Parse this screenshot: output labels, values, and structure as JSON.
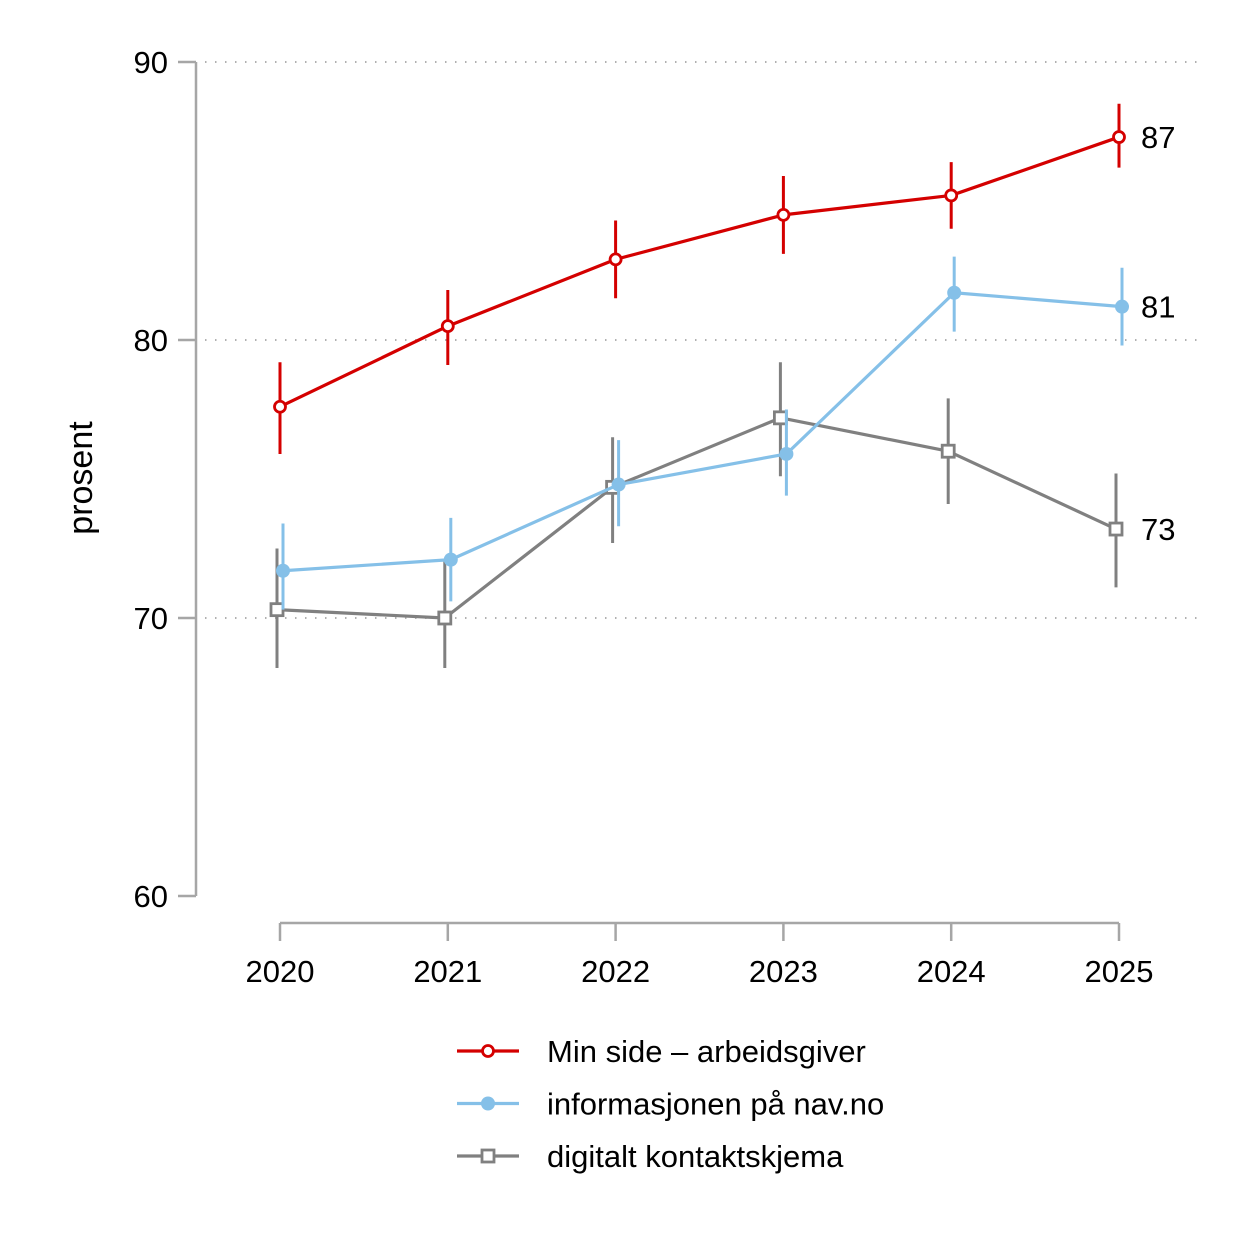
{
  "chart_data": {
    "type": "line",
    "title": "",
    "xlabel": "",
    "ylabel": "prosent",
    "x": [
      "2020",
      "2021",
      "2022",
      "2023",
      "2024",
      "2025"
    ],
    "ylim": [
      60,
      90
    ],
    "yticks": [
      "60",
      "70",
      "80",
      "90"
    ],
    "grid": "horizontal dotted at 70, 80, 90",
    "legend_position": "bottom-center",
    "series": [
      {
        "name": "Min side – arbeidsgiver",
        "color": "#d40000",
        "marker": "hollow-circle",
        "values": [
          77.6,
          80.5,
          82.9,
          84.5,
          85.2,
          87.3
        ],
        "ci_upper": [
          79.2,
          81.8,
          84.3,
          85.9,
          86.4,
          88.5
        ],
        "ci_lower": [
          75.9,
          79.1,
          81.5,
          83.1,
          84.0,
          86.2
        ],
        "end_label": "87"
      },
      {
        "name": "informasjonen på nav.no",
        "color": "#85c0e8",
        "marker": "filled-circle",
        "values": [
          71.7,
          72.1,
          74.8,
          75.9,
          81.7,
          81.2
        ],
        "ci_upper": [
          73.4,
          73.6,
          76.4,
          77.5,
          83.0,
          82.6
        ],
        "ci_lower": [
          70.3,
          70.6,
          73.3,
          74.4,
          80.3,
          79.8
        ],
        "end_label": "81"
      },
      {
        "name": "digitalt kontaktskjema",
        "color": "#808080",
        "marker": "hollow-square",
        "values": [
          70.3,
          70.0,
          74.7,
          77.2,
          76.0,
          73.2
        ],
        "ci_upper": [
          72.5,
          72.1,
          76.5,
          79.2,
          77.9,
          75.2
        ],
        "ci_lower": [
          68.2,
          68.2,
          72.7,
          75.1,
          74.1,
          71.1
        ],
        "end_label": "73"
      }
    ]
  }
}
